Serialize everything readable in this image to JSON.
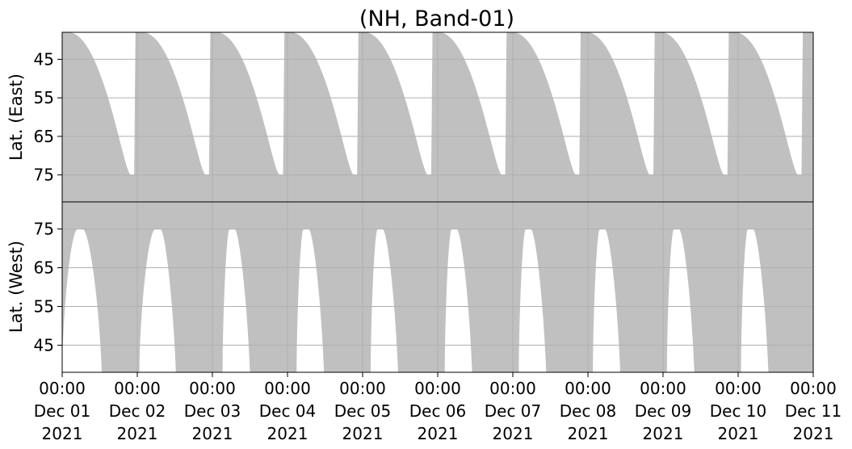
{
  "chart_data": {
    "type": "area",
    "title": "(NH, Band-01)",
    "x_range": [
      "2021-12-01 00:00",
      "2021-12-11 00:00"
    ],
    "x_ticks": [
      {
        "time": "00:00",
        "date": "Dec 01",
        "year": "2021"
      },
      {
        "time": "00:00",
        "date": "Dec 02",
        "year": "2021"
      },
      {
        "time": "00:00",
        "date": "Dec 03",
        "year": "2021"
      },
      {
        "time": "00:00",
        "date": "Dec 04",
        "year": "2021"
      },
      {
        "time": "00:00",
        "date": "Dec 05",
        "year": "2021"
      },
      {
        "time": "00:00",
        "date": "Dec 06",
        "year": "2021"
      },
      {
        "time": "00:00",
        "date": "Dec 07",
        "year": "2021"
      },
      {
        "time": "00:00",
        "date": "Dec 08",
        "year": "2021"
      },
      {
        "time": "00:00",
        "date": "Dec 09",
        "year": "2021"
      },
      {
        "time": "00:00",
        "date": "Dec 10",
        "year": "2021"
      },
      {
        "time": "00:00",
        "date": "Dec 11",
        "year": "2021"
      }
    ],
    "grid": true,
    "fill_color": "#c0c0c0",
    "grid_color": "#b0b0b0",
    "panels": [
      {
        "name": "east",
        "ylabel": "Lat. (East)",
        "ylim": [
          38,
          82
        ],
        "y_inverted": true,
        "yticks": [
          45,
          55,
          65,
          75
        ],
        "ytick_labels": [
          "45",
          "55",
          "65",
          "75"
        ],
        "bands": [
          {
            "start": "2021-12-01 02:00",
            "peak": "2021-12-01 22:00",
            "end": "2021-12-01 23:25",
            "peak_lat": 75
          },
          {
            "start": "2021-12-02 01:40",
            "peak": "2021-12-02 21:55",
            "end": "2021-12-02 23:20",
            "peak_lat": 75
          },
          {
            "start": "2021-12-03 01:20",
            "peak": "2021-12-03 21:35",
            "end": "2021-12-03 23:00",
            "peak_lat": 75
          },
          {
            "start": "2021-12-04 01:00",
            "peak": "2021-12-04 21:15",
            "end": "2021-12-04 22:40",
            "peak_lat": 75
          },
          {
            "start": "2021-12-05 00:40",
            "peak": "2021-12-05 20:55",
            "end": "2021-12-05 22:20",
            "peak_lat": 75
          },
          {
            "start": "2021-12-06 00:20",
            "peak": "2021-12-06 20:35",
            "end": "2021-12-06 22:00",
            "peak_lat": 75
          },
          {
            "start": "2021-12-07 00:00",
            "peak": "2021-12-07 20:15",
            "end": "2021-12-07 21:40",
            "peak_lat": 75
          },
          {
            "start": "2021-12-07 23:40",
            "peak": "2021-12-08 19:55",
            "end": "2021-12-08 21:20",
            "peak_lat": 75
          },
          {
            "start": "2021-12-08 23:20",
            "peak": "2021-12-09 19:35",
            "end": "2021-12-09 21:00",
            "peak_lat": 75
          },
          {
            "start": "2021-12-09 23:00",
            "peak": "2021-12-10 19:15",
            "end": "2021-12-10 20:40",
            "peak_lat": 75
          }
        ]
      },
      {
        "name": "west",
        "ylabel": "Lat. (West)",
        "ylim": [
          38,
          82
        ],
        "y_inverted": false,
        "yticks": [
          45,
          55,
          65,
          75
        ],
        "ytick_labels": [
          "45",
          "55",
          "65",
          "75"
        ],
        "bands": [
          {
            "start": "2021-12-01 00:00",
            "peak": "2021-12-01 05:00",
            "end": "2021-12-01 12:40",
            "peak_lat": 75
          },
          {
            "start": "2021-12-02 00:40",
            "peak": "2021-12-02 05:50",
            "end": "2021-12-02 12:20",
            "peak_lat": 75
          },
          {
            "start": "2021-12-03 03:15",
            "peak": "2021-12-03 05:30",
            "end": "2021-12-03 12:00",
            "peak_lat": 75
          },
          {
            "start": "2021-12-04 02:55",
            "peak": "2021-12-04 05:10",
            "end": "2021-12-04 11:40",
            "peak_lat": 75
          },
          {
            "start": "2021-12-05 02:35",
            "peak": "2021-12-05 04:50",
            "end": "2021-12-05 11:20",
            "peak_lat": 75
          },
          {
            "start": "2021-12-06 02:15",
            "peak": "2021-12-06 04:30",
            "end": "2021-12-06 11:00",
            "peak_lat": 75
          },
          {
            "start": "2021-12-07 01:55",
            "peak": "2021-12-07 04:10",
            "end": "2021-12-07 10:40",
            "peak_lat": 75
          },
          {
            "start": "2021-12-08 01:35",
            "peak": "2021-12-08 03:50",
            "end": "2021-12-08 10:20",
            "peak_lat": 75
          },
          {
            "start": "2021-12-09 01:15",
            "peak": "2021-12-09 03:30",
            "end": "2021-12-09 10:00",
            "peak_lat": 75
          },
          {
            "start": "2021-12-10 00:55",
            "peak": "2021-12-10 03:10",
            "end": "2021-12-10 09:40",
            "peak_lat": 75
          }
        ]
      }
    ]
  }
}
